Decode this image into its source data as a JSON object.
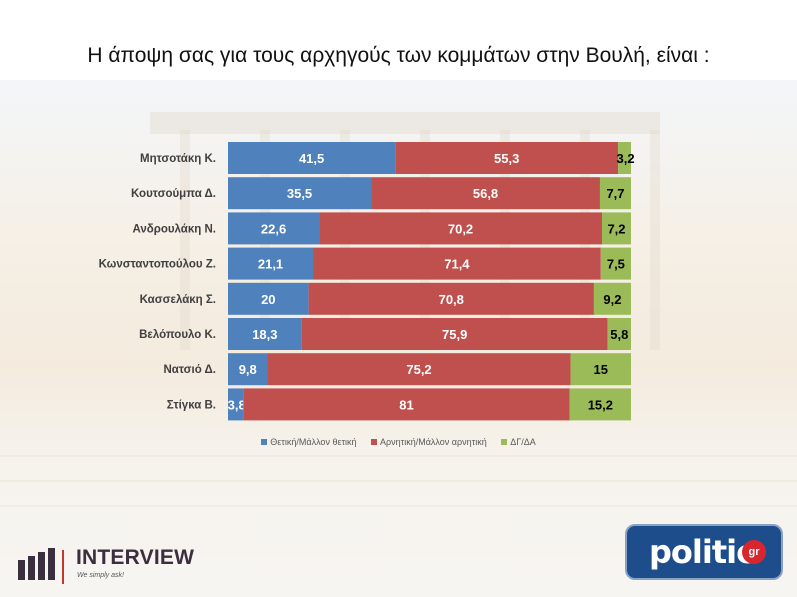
{
  "title": "Η άποψη σας για τους αρχηγούς των κομμάτων στην Βουλή,  είναι :",
  "colors": {
    "positive": "#4f81bd",
    "negative": "#c0504d",
    "dk": "#9bbb59",
    "title": "#111111"
  },
  "chart_data": {
    "type": "bar",
    "orientation": "horizontal",
    "stacked": true,
    "percent_stacked": true,
    "categories": [
      "Μητσοτάκη Κ.",
      "Κουτσούμπα Δ.",
      "Ανδρουλάκη Ν.",
      "Κωνσταντοπούλου Ζ.",
      "Κασσελάκη Σ.",
      "Βελόπουλο Κ.",
      "Νατσιό Δ.",
      "Στίγκα Β."
    ],
    "series": [
      {
        "name": "Θετική/Μάλλον θετική",
        "color": "#4f81bd",
        "label_color": "#ffffff",
        "labels": [
          "41,5",
          "35,5",
          "22,6",
          "21,1",
          "20",
          "18,3",
          "9,8",
          "3,8"
        ],
        "values": [
          41.5,
          35.5,
          22.6,
          21.1,
          20,
          18.3,
          9.8,
          3.8
        ]
      },
      {
        "name": "Αρνητική/Μάλλον αρνητική",
        "color": "#c0504d",
        "label_color": "#ffffff",
        "labels": [
          "55,3",
          "56,8",
          "70,2",
          "71,4",
          "70,8",
          "75,9",
          "75,2",
          "81"
        ],
        "values": [
          55.3,
          56.8,
          70.2,
          71.4,
          70.8,
          75.9,
          75.2,
          81
        ]
      },
      {
        "name": "ΔΓ/ΔΑ",
        "color": "#9bbb59",
        "label_color": "#000000",
        "labels": [
          "3,2",
          "7,7",
          "7,2",
          "7,5",
          "9,2",
          "5,8",
          "15",
          "15,2"
        ],
        "values": [
          3.2,
          7.7,
          7.2,
          7.5,
          9.2,
          5.8,
          15,
          15.2
        ]
      }
    ],
    "legend_position": "bottom",
    "grid": false
  },
  "logos": {
    "interview": {
      "name": "INTERVIEW",
      "slogan": "We simply ask!"
    },
    "politic": {
      "word": "politic",
      "badge": "gr"
    }
  }
}
